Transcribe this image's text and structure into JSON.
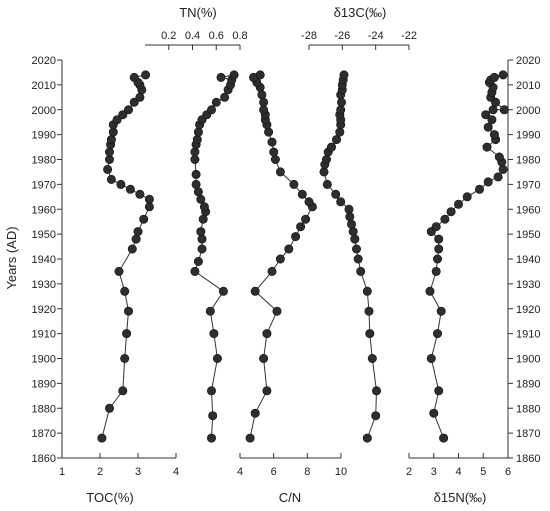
{
  "chart_data": {
    "type": "scatter",
    "ylabel": "Years (AD)",
    "ylim": [
      1860,
      2020
    ],
    "yticks": [
      1860,
      1870,
      1880,
      1890,
      1900,
      1910,
      1920,
      1930,
      1940,
      1950,
      1960,
      1970,
      1980,
      1990,
      2000,
      2010,
      2020
    ],
    "grid": false,
    "panels": [
      {
        "name": "TOC(%)",
        "position": "bottom",
        "xlim": [
          1,
          4
        ],
        "xticks": [
          1,
          2,
          3,
          4
        ],
        "tick_labels": [
          "1",
          "2",
          "3",
          "4"
        ],
        "points": [
          [
            2.05,
            1868
          ],
          [
            2.25,
            1880
          ],
          [
            2.6,
            1887
          ],
          [
            2.65,
            1900
          ],
          [
            2.7,
            1910
          ],
          [
            2.75,
            1919
          ],
          [
            2.65,
            1927
          ],
          [
            2.5,
            1935
          ],
          [
            2.85,
            1944
          ],
          [
            2.95,
            1948
          ],
          [
            3.0,
            1951
          ],
          [
            3.15,
            1956
          ],
          [
            3.3,
            1961
          ],
          [
            3.3,
            1964
          ],
          [
            3.05,
            1966
          ],
          [
            2.8,
            1968
          ],
          [
            2.55,
            1970
          ],
          [
            2.3,
            1972
          ],
          [
            2.2,
            1976
          ],
          [
            2.25,
            1980
          ],
          [
            2.25,
            1983
          ],
          [
            2.28,
            1986
          ],
          [
            2.3,
            1988
          ],
          [
            2.35,
            1991
          ],
          [
            2.35,
            1994
          ],
          [
            2.45,
            1996
          ],
          [
            2.6,
            1998
          ],
          [
            2.75,
            2000
          ],
          [
            2.9,
            2003
          ],
          [
            3.05,
            2005
          ],
          [
            3.1,
            2008
          ],
          [
            3.05,
            2010
          ],
          [
            3.0,
            2011
          ],
          [
            2.9,
            2013
          ],
          [
            3.2,
            2014
          ]
        ]
      },
      {
        "name": "TN(%)",
        "position": "top",
        "xlim": [
          0,
          0.8
        ],
        "xticks": [
          0.2,
          0.4,
          0.6,
          0.8
        ],
        "tick_labels": [
          "0.2",
          "0.4",
          "0.6",
          "0.8"
        ],
        "points": [
          [
            0.56,
            1868
          ],
          [
            0.57,
            1877
          ],
          [
            0.56,
            1887
          ],
          [
            0.61,
            1900
          ],
          [
            0.58,
            1910
          ],
          [
            0.55,
            1919
          ],
          [
            0.66,
            1927
          ],
          [
            0.42,
            1935
          ],
          [
            0.45,
            1939
          ],
          [
            0.48,
            1944
          ],
          [
            0.48,
            1948
          ],
          [
            0.47,
            1951
          ],
          [
            0.49,
            1956
          ],
          [
            0.51,
            1959
          ],
          [
            0.5,
            1961
          ],
          [
            0.47,
            1964
          ],
          [
            0.45,
            1967
          ],
          [
            0.43,
            1970
          ],
          [
            0.43,
            1974
          ],
          [
            0.42,
            1980
          ],
          [
            0.42,
            1983
          ],
          [
            0.43,
            1986
          ],
          [
            0.44,
            1988
          ],
          [
            0.45,
            1991
          ],
          [
            0.46,
            1994
          ],
          [
            0.48,
            1996
          ],
          [
            0.52,
            1998
          ],
          [
            0.56,
            2000
          ],
          [
            0.6,
            2003
          ],
          [
            0.67,
            2005
          ],
          [
            0.7,
            2008
          ],
          [
            0.72,
            2010
          ],
          [
            0.73,
            2012
          ],
          [
            0.64,
            2013
          ],
          [
            0.75,
            2014
          ]
        ]
      },
      {
        "name": "C/N",
        "position": "bottom",
        "xlim": [
          4,
          10
        ],
        "xticks": [
          4,
          6,
          8,
          10
        ],
        "tick_labels": [
          "4",
          "6",
          "8",
          "10"
        ],
        "points": [
          [
            4.6,
            1868
          ],
          [
            4.9,
            1878
          ],
          [
            5.6,
            1887
          ],
          [
            5.4,
            1900
          ],
          [
            5.6,
            1910
          ],
          [
            6.2,
            1919
          ],
          [
            4.9,
            1927
          ],
          [
            5.9,
            1935
          ],
          [
            6.4,
            1940
          ],
          [
            6.9,
            1944
          ],
          [
            7.3,
            1949
          ],
          [
            7.6,
            1953
          ],
          [
            7.9,
            1956
          ],
          [
            8.3,
            1961
          ],
          [
            8.1,
            1963
          ],
          [
            7.7,
            1966
          ],
          [
            7.2,
            1970
          ],
          [
            6.4,
            1975
          ],
          [
            6.1,
            1980
          ],
          [
            6.0,
            1983
          ],
          [
            5.9,
            1987
          ],
          [
            5.7,
            1991
          ],
          [
            5.6,
            1994
          ],
          [
            5.5,
            1996
          ],
          [
            5.5,
            1998
          ],
          [
            5.4,
            2000
          ],
          [
            5.4,
            2003
          ],
          [
            5.3,
            2006
          ],
          [
            5.2,
            2009
          ],
          [
            5.0,
            2011
          ],
          [
            4.8,
            2013
          ],
          [
            5.2,
            2014
          ]
        ]
      },
      {
        "name": "δ13C(‰)",
        "position": "top",
        "xlim": [
          -28,
          -22
        ],
        "xticks": [
          -28,
          -26,
          -24,
          -22
        ],
        "tick_labels": [
          "-28",
          "-26",
          "-24",
          "-22"
        ],
        "points": [
          [
            -24.5,
            1868
          ],
          [
            -24.0,
            1877
          ],
          [
            -23.95,
            1887
          ],
          [
            -24.2,
            1900
          ],
          [
            -24.35,
            1910
          ],
          [
            -24.4,
            1919
          ],
          [
            -24.5,
            1927
          ],
          [
            -24.9,
            1935
          ],
          [
            -25.05,
            1940
          ],
          [
            -25.15,
            1944
          ],
          [
            -25.25,
            1948
          ],
          [
            -25.35,
            1951
          ],
          [
            -25.45,
            1954
          ],
          [
            -25.55,
            1957
          ],
          [
            -25.6,
            1960
          ],
          [
            -26.1,
            1963
          ],
          [
            -26.4,
            1966
          ],
          [
            -26.9,
            1970
          ],
          [
            -27.1,
            1975
          ],
          [
            -27.05,
            1978
          ],
          [
            -26.95,
            1980
          ],
          [
            -26.85,
            1983
          ],
          [
            -26.65,
            1985
          ],
          [
            -26.35,
            1988
          ],
          [
            -26.15,
            1991
          ],
          [
            -26.1,
            1994
          ],
          [
            -26.1,
            1996
          ],
          [
            -26.15,
            1998
          ],
          [
            -26.1,
            2000
          ],
          [
            -26.05,
            2003
          ],
          [
            -26.1,
            2006
          ],
          [
            -26.0,
            2008
          ],
          [
            -26.0,
            2010
          ],
          [
            -25.95,
            2012
          ],
          [
            -25.9,
            2014
          ]
        ]
      },
      {
        "name": "δ15N(‰)",
        "position": "bottom",
        "xlim": [
          2,
          6
        ],
        "xticks": [
          2,
          3,
          4,
          5,
          6
        ],
        "tick_labels": [
          "2",
          "3",
          "4",
          "5",
          "6"
        ],
        "points": [
          [
            3.4,
            1868
          ],
          [
            3.0,
            1878
          ],
          [
            3.2,
            1887
          ],
          [
            2.9,
            1900
          ],
          [
            3.15,
            1910
          ],
          [
            3.3,
            1919
          ],
          [
            2.85,
            1927
          ],
          [
            3.1,
            1935
          ],
          [
            3.15,
            1940
          ],
          [
            3.2,
            1944
          ],
          [
            3.2,
            1948
          ],
          [
            2.9,
            1951
          ],
          [
            3.1,
            1953
          ],
          [
            3.45,
            1956
          ],
          [
            3.7,
            1959
          ],
          [
            4.0,
            1962
          ],
          [
            4.35,
            1965
          ],
          [
            4.85,
            1968
          ],
          [
            5.2,
            1971
          ],
          [
            5.6,
            1973
          ],
          [
            5.8,
            1976
          ],
          [
            5.75,
            1979
          ],
          [
            5.65,
            1981
          ],
          [
            5.15,
            1985
          ],
          [
            5.5,
            1988
          ],
          [
            5.45,
            1990
          ],
          [
            5.2,
            1993
          ],
          [
            5.35,
            1996
          ],
          [
            5.1,
            1998
          ],
          [
            5.4,
            2000
          ],
          [
            5.85,
            2000
          ],
          [
            5.5,
            2003
          ],
          [
            5.3,
            2005
          ],
          [
            5.35,
            2007
          ],
          [
            5.4,
            2009
          ],
          [
            5.25,
            2011
          ],
          [
            5.3,
            2012
          ],
          [
            5.45,
            2013
          ],
          [
            5.8,
            2014
          ]
        ]
      }
    ]
  }
}
